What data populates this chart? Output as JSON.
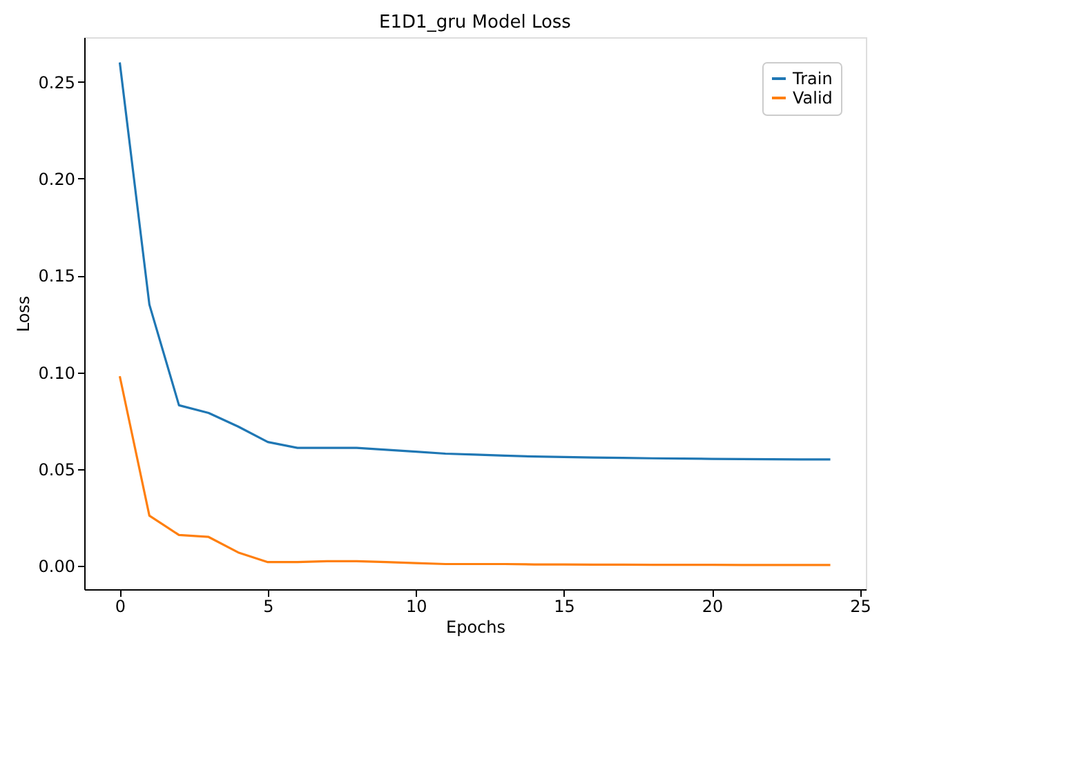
{
  "chart_data": {
    "type": "line",
    "title": "E1D1_gru Model Loss",
    "xlabel": "Epochs",
    "ylabel": "Loss",
    "x": [
      0,
      1,
      2,
      3,
      4,
      5,
      6,
      7,
      8,
      9,
      10,
      11,
      12,
      13,
      14,
      15,
      16,
      17,
      18,
      19,
      20,
      21,
      22,
      23,
      24
    ],
    "series": [
      {
        "name": "Train",
        "color": "#1f77b4",
        "values": [
          0.26,
          0.135,
          0.083,
          0.079,
          0.072,
          0.064,
          0.061,
          0.061,
          0.061,
          0.06,
          0.059,
          0.058,
          0.0575,
          0.057,
          0.0565,
          0.0563,
          0.056,
          0.0558,
          0.0556,
          0.0555,
          0.0553,
          0.0552,
          0.0551,
          0.055,
          0.055
        ]
      },
      {
        "name": "Valid",
        "color": "#ff7f0e",
        "values": [
          0.098,
          0.026,
          0.016,
          0.015,
          0.007,
          0.002,
          0.002,
          0.0025,
          0.0025,
          0.002,
          0.0015,
          0.001,
          0.001,
          0.001,
          0.0008,
          0.0008,
          0.0007,
          0.0007,
          0.0006,
          0.0006,
          0.0006,
          0.0005,
          0.0005,
          0.0005,
          0.0005
        ]
      }
    ],
    "xlim": [
      -1.2,
      25.2
    ],
    "ylim": [
      -0.012,
      0.273
    ],
    "xticks": [
      0,
      5,
      10,
      15,
      20,
      25
    ],
    "yticks": [
      {
        "value": 0,
        "label": "0.00"
      },
      {
        "value": 0.05,
        "label": "0.05"
      },
      {
        "value": 0.1,
        "label": "0.10"
      },
      {
        "value": 0.15,
        "label": "0.15"
      },
      {
        "value": 0.2,
        "label": "0.20"
      },
      {
        "value": 0.25,
        "label": "0.25"
      }
    ],
    "grid": false,
    "legend": "top right",
    "marker": "none",
    "line_style": "solid"
  }
}
